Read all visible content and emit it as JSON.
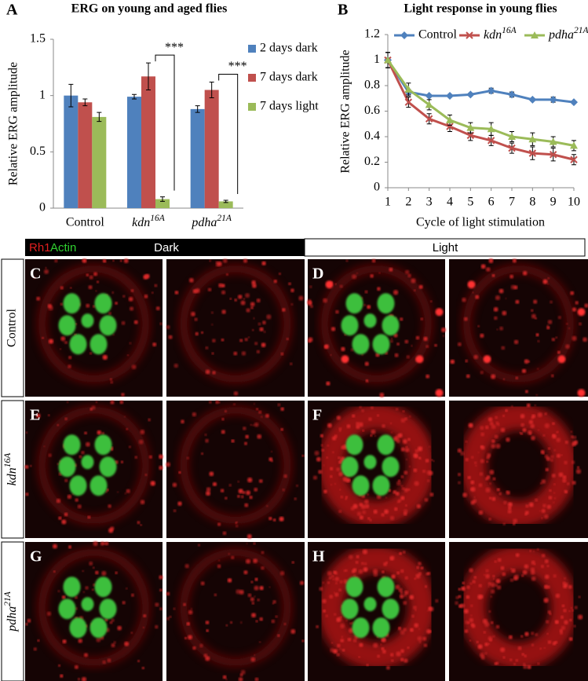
{
  "chart_data": [
    {
      "type": "bar",
      "panel": "A",
      "title": "ERG on young and aged flies",
      "y_label": "Relative ERG amplitude",
      "categories": [
        "Control",
        "kdn16A",
        "pdha21A"
      ],
      "series": [
        {
          "name": "2 days dark",
          "color": "#4f81bd",
          "values": [
            1.0,
            0.99,
            0.88
          ],
          "errors": [
            0.1,
            0.02,
            0.03
          ]
        },
        {
          "name": "7 days dark",
          "color": "#c0504d",
          "values": [
            0.94,
            1.17,
            1.05
          ],
          "errors": [
            0.03,
            0.12,
            0.07
          ]
        },
        {
          "name": "7 days light",
          "color": "#9bbb59",
          "values": [
            0.81,
            0.08,
            0.06
          ],
          "errors": [
            0.04,
            0.02,
            0.01
          ]
        }
      ],
      "annotations": [
        "***",
        "***"
      ],
      "ylim": [
        0,
        1.5
      ],
      "yticks": [
        0,
        0.5,
        1,
        1.5
      ],
      "legend": "right"
    },
    {
      "type": "line",
      "panel": "B",
      "title": "Light response in young flies",
      "x_label": "Cycle of light stimulation",
      "y_label": "Relative ERG amplitude",
      "x": [
        1,
        2,
        3,
        4,
        5,
        6,
        7,
        8,
        9,
        10
      ],
      "series": [
        {
          "name": "Control",
          "color": "#4f81bd",
          "marker": "diamond",
          "values": [
            1.0,
            0.75,
            0.72,
            0.72,
            0.73,
            0.76,
            0.73,
            0.69,
            0.69,
            0.67
          ],
          "errors": [
            0.06,
            0.02,
            0.01,
            0.01,
            0.01,
            0.02,
            0.02,
            0.01,
            0.02,
            0.01
          ]
        },
        {
          "name": "kdn16A",
          "color": "#c0504d",
          "marker": "x",
          "values": [
            1.0,
            0.67,
            0.54,
            0.48,
            0.41,
            0.37,
            0.31,
            0.27,
            0.26,
            0.22
          ],
          "errors": [
            0.06,
            0.04,
            0.04,
            0.04,
            0.04,
            0.04,
            0.04,
            0.05,
            0.05,
            0.04
          ]
        },
        {
          "name": "pdha21A",
          "color": "#9bbb59",
          "marker": "triangle",
          "values": [
            1.0,
            0.77,
            0.65,
            0.53,
            0.47,
            0.46,
            0.4,
            0.38,
            0.36,
            0.33
          ],
          "errors": [
            0.06,
            0.05,
            0.04,
            0.04,
            0.04,
            0.05,
            0.04,
            0.05,
            0.04,
            0.04
          ]
        }
      ],
      "xlim": [
        1,
        10
      ],
      "xticks": [
        1,
        2,
        3,
        4,
        5,
        6,
        7,
        8,
        9,
        10
      ],
      "ylim": [
        0,
        1.2
      ],
      "yticks": [
        0,
        0.2,
        0.4,
        0.6,
        0.8,
        1,
        1.2
      ],
      "legend": "top"
    }
  ],
  "figure": {
    "header": {
      "stain_1": "Rh1",
      "stain_2": "Actin",
      "dark": "Dark",
      "light": "Light"
    },
    "panels": [
      "C",
      "D",
      "E",
      "F",
      "G",
      "H"
    ],
    "rows": [
      "Control",
      "kdn16A",
      "pdha21A"
    ]
  }
}
